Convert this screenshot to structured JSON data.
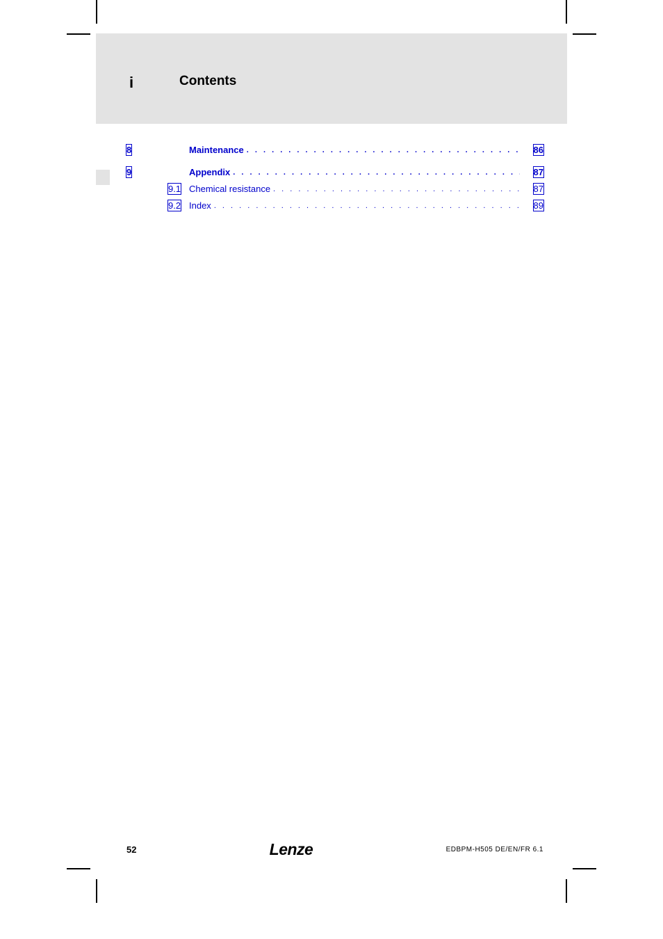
{
  "header": {
    "marker": "i",
    "title": "Contents"
  },
  "link_color": "#0000cc",
  "header_bg": "#e3e3e3",
  "toc": {
    "entries": [
      {
        "num": "8",
        "sub": "",
        "title": "Maintenance",
        "page": "86",
        "bold": true,
        "indent": 0
      },
      {
        "num": "9",
        "sub": "",
        "title": "Appendix",
        "page": "87",
        "bold": true,
        "indent": 0
      },
      {
        "num": "",
        "sub": "9.1",
        "title": "Chemical resistance",
        "page": "87",
        "bold": false,
        "indent": 1
      },
      {
        "num": "",
        "sub": "9.2",
        "title": "Index",
        "page": "89",
        "bold": false,
        "indent": 1
      }
    ]
  },
  "footer": {
    "page_number": "52",
    "logo": "Lenze",
    "doc_id": "EDBPM-H505  DE/EN/FR  6.1"
  }
}
